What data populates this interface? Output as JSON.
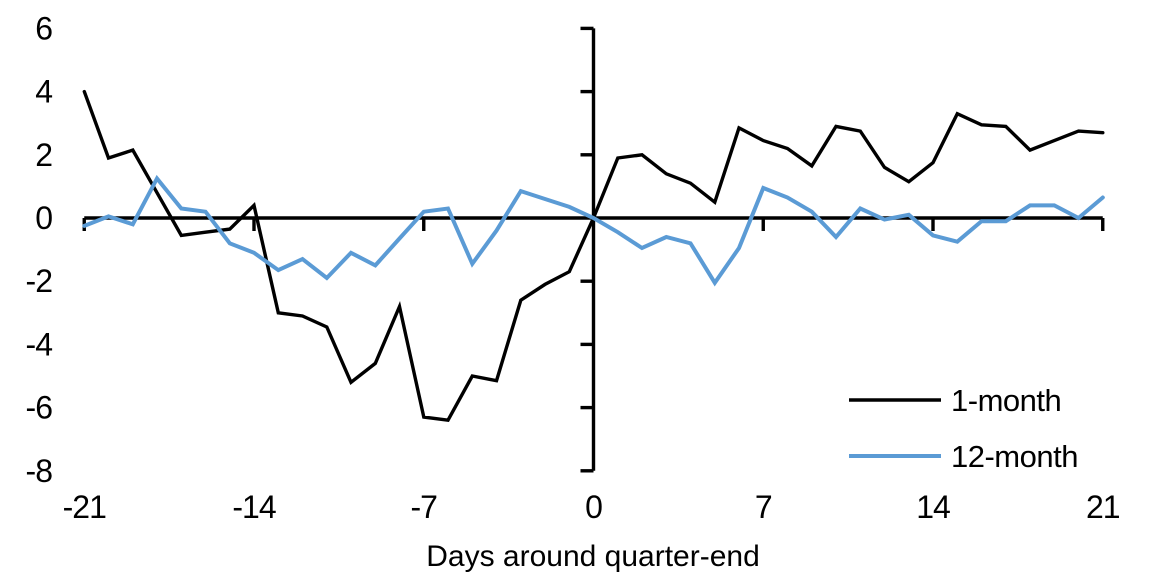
{
  "chart_data": {
    "type": "line",
    "title": "",
    "xlabel": "Days around quarter-end",
    "ylabel": "",
    "xlim": [
      -21,
      21
    ],
    "ylim": [
      -8,
      6
    ],
    "xticks": [
      -21,
      -14,
      -7,
      0,
      7,
      14,
      21
    ],
    "yticks": [
      6,
      4,
      2,
      0,
      -2,
      -4,
      -6,
      -8
    ],
    "grid": false,
    "legend_position": "inside-bottom-right",
    "axis_color": "#000000",
    "x": [
      -21,
      -20,
      -19,
      -18,
      -17,
      -16,
      -15,
      -14,
      -13,
      -12,
      -11,
      -10,
      -9,
      -8,
      -7,
      -6,
      -5,
      -4,
      -3,
      -2,
      -1,
      0,
      1,
      2,
      3,
      4,
      5,
      6,
      7,
      8,
      9,
      10,
      11,
      12,
      13,
      14,
      15,
      16,
      17,
      18,
      19,
      20,
      21
    ],
    "series": [
      {
        "name": "1-month",
        "color": "#000000",
        "values": [
          4.0,
          1.9,
          2.15,
          0.8,
          -0.55,
          -0.45,
          -0.35,
          0.4,
          -3.0,
          -3.1,
          -3.45,
          -5.2,
          -4.6,
          -2.8,
          -6.3,
          -6.4,
          -5.0,
          -5.15,
          -2.6,
          -2.1,
          -1.7,
          0.0,
          1.9,
          2.0,
          1.4,
          1.1,
          0.5,
          2.85,
          2.45,
          2.2,
          1.65,
          2.9,
          2.75,
          1.6,
          1.15,
          1.75,
          3.3,
          2.95,
          2.9,
          2.15,
          2.45,
          2.75,
          2.7
        ]
      },
      {
        "name": "12-month",
        "color": "#5B9BD5",
        "values": [
          -0.25,
          0.05,
          -0.2,
          1.25,
          0.3,
          0.2,
          -0.8,
          -1.1,
          -1.65,
          -1.3,
          -1.9,
          -1.1,
          -1.5,
          -0.65,
          0.2,
          0.3,
          -1.45,
          -0.4,
          0.85,
          0.6,
          0.35,
          0.0,
          -0.45,
          -0.95,
          -0.6,
          -0.8,
          -2.05,
          -0.95,
          0.95,
          0.65,
          0.2,
          -0.6,
          0.3,
          -0.05,
          0.1,
          -0.55,
          -0.75,
          -0.1,
          -0.1,
          0.4,
          0.4,
          0.0,
          0.65
        ]
      }
    ]
  }
}
